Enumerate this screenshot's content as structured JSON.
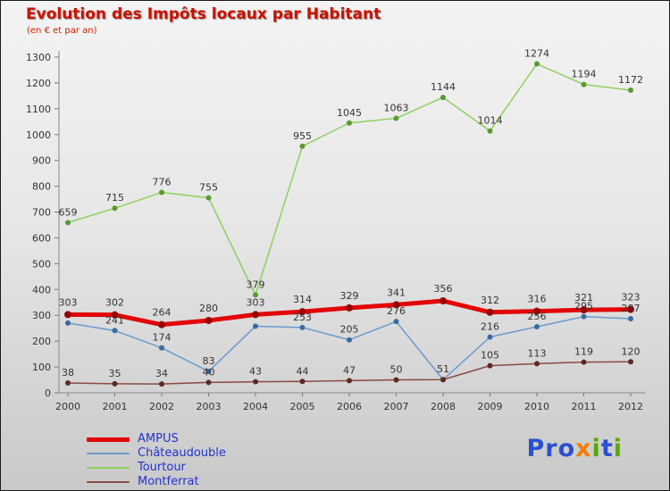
{
  "header": {
    "title": "Evolution des Impôts locaux par Habitant",
    "subtitle": "(en € et par an)",
    "title_color": "#cc1100"
  },
  "chart_data": {
    "type": "line",
    "title": "Evolution des Impôts locaux par Habitant",
    "subtitle": "(en € et par an)",
    "x": [
      2000,
      2001,
      2002,
      2003,
      2004,
      2005,
      2006,
      2007,
      2008,
      2009,
      2010,
      2011,
      2012
    ],
    "ylim": [
      0,
      1300
    ],
    "ytick_step": 100,
    "grid": false,
    "legend_position": "bottom-left",
    "series": [
      {
        "name": "AMPUS",
        "color": "#e30505",
        "marker_color": "#990000",
        "width": 5,
        "values": [
          303,
          302,
          264,
          280,
          303,
          314,
          329,
          341,
          356,
          312,
          316,
          321,
          323
        ],
        "labels": [
          "303",
          "302",
          "264",
          "280",
          "303",
          "314",
          "329",
          "341",
          "356",
          "312",
          "316",
          "321",
          "323"
        ]
      },
      {
        "name": "Châteaudouble",
        "color": "#6b9ace",
        "marker_color": "#3a6a9e",
        "width": 1.5,
        "values": [
          270,
          241,
          174,
          83,
          258,
          253,
          205,
          276,
          51,
          216,
          256,
          295,
          287
        ],
        "labels": [
          null,
          "241",
          "174",
          "83",
          null,
          "253",
          "205",
          "276",
          "51",
          "216",
          "256",
          "295",
          "287"
        ]
      },
      {
        "name": "Tourtour",
        "color": "#90d060",
        "marker_color": "#5a9a30",
        "width": 1.5,
        "values": [
          659,
          715,
          776,
          755,
          379,
          955,
          1045,
          1063,
          1144,
          1014,
          1274,
          1194,
          1172
        ],
        "labels": [
          "659",
          "715",
          "776",
          "755",
          "379",
          "955",
          "1045",
          "1063",
          "1144",
          "1014",
          "1274",
          "1194",
          "1172"
        ]
      },
      {
        "name": "Montferrat",
        "color": "#8b4a42",
        "marker_color": "#5b2a22",
        "width": 1.5,
        "values": [
          38,
          35,
          34,
          40,
          43,
          44,
          47,
          50,
          51,
          105,
          113,
          119,
          120
        ],
        "labels": [
          "38",
          "35",
          "34",
          "40",
          "43",
          "44",
          "47",
          "50",
          null,
          "105",
          "113",
          "119",
          "120"
        ]
      }
    ]
  },
  "logo": {
    "text_parts": [
      {
        "t": "Pro",
        "c": "#2b4fd0"
      },
      {
        "t": "x",
        "c": "#f07f00"
      },
      {
        "t": "i",
        "c": "#58a800"
      },
      {
        "t": "t",
        "c": "#2b4fd0"
      },
      {
        "t": "i",
        "c": "#58a800"
      }
    ]
  }
}
